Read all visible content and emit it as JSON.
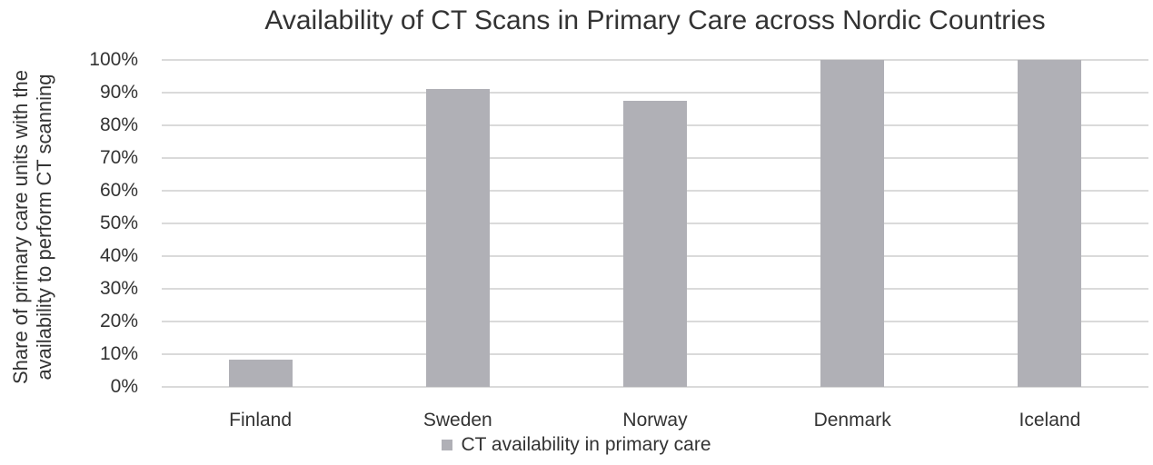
{
  "chart_data": {
    "type": "bar",
    "title": "Availability of CT Scans in Primary Care across Nordic Countries",
    "ylabel": "Share of primary care units with the availability to perform CT scanning",
    "ylabel_lines": [
      "Share of primary care units with the",
      "availability to perform CT scanning"
    ],
    "xlabel": "",
    "categories": [
      "Finland",
      "Sweden",
      "Norway",
      "Denmark",
      "Iceland"
    ],
    "values": [
      8.3,
      91,
      87.5,
      100,
      100
    ],
    "y_ticks": [
      "100%",
      "90%",
      "80%",
      "70%",
      "60%",
      "50%",
      "40%",
      "30%",
      "20%",
      "10%",
      "0%"
    ],
    "ylim": [
      0,
      100
    ],
    "y_tick_step": 10,
    "grid": true,
    "legend": {
      "label": "CT availability in primary care",
      "position": "bottom-center"
    },
    "colors": {
      "bar": "#b0b0b6",
      "gridline": "#dadada",
      "text": "#333333",
      "background": "#ffffff"
    }
  }
}
